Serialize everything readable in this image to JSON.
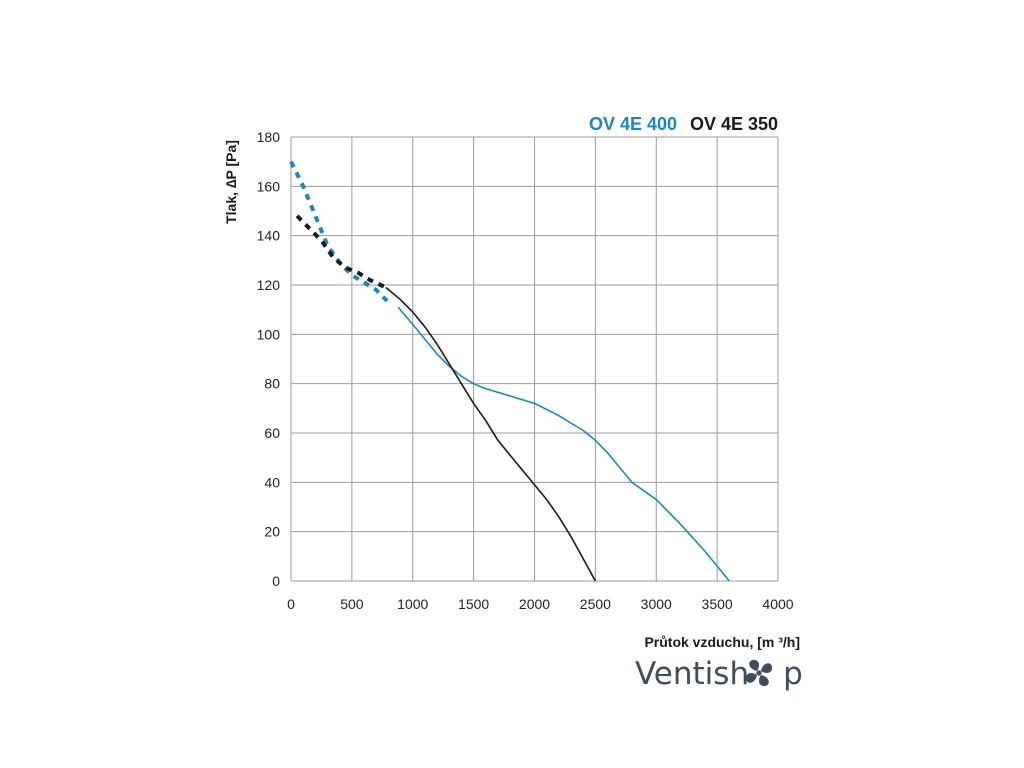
{
  "chart_data": {
    "type": "line",
    "xlabel": "Průtok vzduchu, [m ³/h]",
    "ylabel": "Tlak, ∆P [Pa]",
    "xlim": [
      0,
      4000
    ],
    "ylim": [
      0,
      180
    ],
    "x_ticks": [
      0,
      500,
      1000,
      1500,
      2000,
      2500,
      3000,
      3500,
      4000
    ],
    "y_ticks": [
      0,
      20,
      40,
      60,
      80,
      100,
      120,
      140,
      160,
      180
    ],
    "grid": true,
    "legend_position": "top-right",
    "series": [
      {
        "name": "OV 4E 400",
        "color": "#1a86c2",
        "dashed_points": [
          [
            0,
            170
          ],
          [
            100,
            160
          ],
          [
            200,
            148
          ],
          [
            300,
            136
          ],
          [
            400,
            129
          ],
          [
            500,
            124
          ],
          [
            600,
            121
          ],
          [
            700,
            118
          ],
          [
            800,
            113
          ]
        ],
        "solid_points": [
          [
            880,
            111
          ],
          [
            1000,
            104
          ],
          [
            1100,
            98
          ],
          [
            1200,
            92
          ],
          [
            1300,
            87
          ],
          [
            1400,
            83
          ],
          [
            1500,
            80
          ],
          [
            1600,
            78
          ],
          [
            1800,
            75
          ],
          [
            2000,
            72
          ],
          [
            2200,
            67
          ],
          [
            2400,
            61
          ],
          [
            2500,
            57
          ],
          [
            2600,
            52
          ],
          [
            2700,
            46
          ],
          [
            2800,
            40
          ],
          [
            3000,
            33
          ],
          [
            3200,
            23
          ],
          [
            3400,
            12
          ],
          [
            3600,
            0
          ]
        ]
      },
      {
        "name": "OV 4E 350",
        "color": "#1a1a1a",
        "dashed_points": [
          [
            50,
            148
          ],
          [
            150,
            143
          ],
          [
            250,
            138
          ],
          [
            350,
            131
          ],
          [
            450,
            127
          ],
          [
            550,
            125
          ],
          [
            650,
            122
          ],
          [
            780,
            119
          ]
        ],
        "solid_points": [
          [
            780,
            119
          ],
          [
            900,
            114
          ],
          [
            1000,
            109
          ],
          [
            1100,
            103
          ],
          [
            1200,
            96
          ],
          [
            1300,
            88
          ],
          [
            1400,
            80
          ],
          [
            1500,
            72
          ],
          [
            1600,
            65
          ],
          [
            1700,
            57
          ],
          [
            1800,
            51
          ],
          [
            1900,
            45
          ],
          [
            2000,
            39
          ],
          [
            2100,
            33
          ],
          [
            2200,
            26
          ],
          [
            2300,
            18
          ],
          [
            2400,
            9
          ],
          [
            2500,
            0
          ]
        ]
      }
    ]
  },
  "brand": {
    "name_left": "Ventish",
    "name_right": "p",
    "icon": "fan-icon"
  },
  "colors": {
    "grid": "#9a9a9a",
    "axis_text": "#222222",
    "brand": "#3d4f5e"
  }
}
